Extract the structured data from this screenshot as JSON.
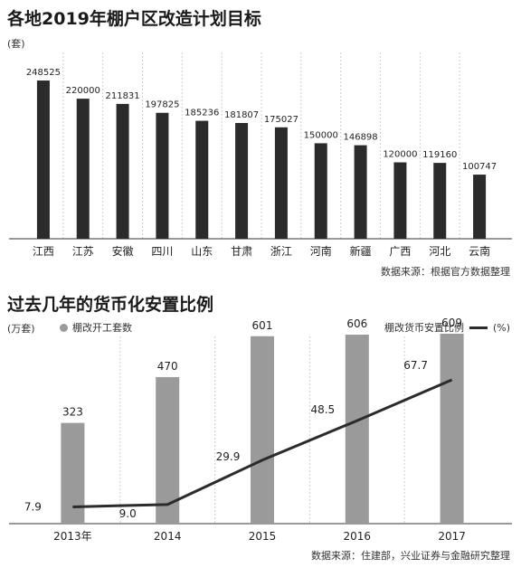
{
  "chart_data": [
    {
      "type": "bar",
      "title": "各地2019年棚户区改造计划目标",
      "unit": "(套)",
      "categories": [
        "江西",
        "江苏",
        "安徽",
        "四川",
        "山东",
        "甘肃",
        "浙江",
        "河南",
        "新疆",
        "广西",
        "河北",
        "云南"
      ],
      "values": [
        248525,
        220000,
        211831,
        197825,
        185236,
        181807,
        175027,
        150000,
        146898,
        120000,
        119160,
        100747
      ],
      "value_labels": [
        "248525",
        "220000",
        "211831",
        "197825",
        "185236",
        "181807",
        "175027",
        "150000",
        "146898",
        "120000",
        "119160",
        "100747"
      ],
      "grid": "vertical",
      "source": "数据来源：根据官方数据整理",
      "bar_color": "#2b2b2b"
    },
    {
      "type": "bar+line",
      "title": "过去几年的货币化安置比例",
      "left_unit": "(万套)",
      "right_unit": "(%)",
      "categories": [
        "2013年",
        "2014",
        "2015",
        "2016",
        "2017"
      ],
      "series": [
        {
          "name": "棚改开工套数",
          "values": [
            323,
            470,
            601,
            606,
            609
          ],
          "labels": [
            "323",
            "470",
            "601",
            "606",
            "609"
          ],
          "color": "#9a9a9a",
          "kind": "bar"
        },
        {
          "name": "棚改货币安置比例",
          "values": [
            7.9,
            9.0,
            29.9,
            48.5,
            67.7
          ],
          "labels": [
            "7.9",
            "9.0",
            "29.9",
            "48.5",
            "67.7"
          ],
          "color": "#2b2b2b",
          "kind": "line"
        }
      ],
      "legend_position": "top",
      "grid": "vertical",
      "source": "数据来源：住建部，兴业证券与金融研究整理"
    }
  ]
}
